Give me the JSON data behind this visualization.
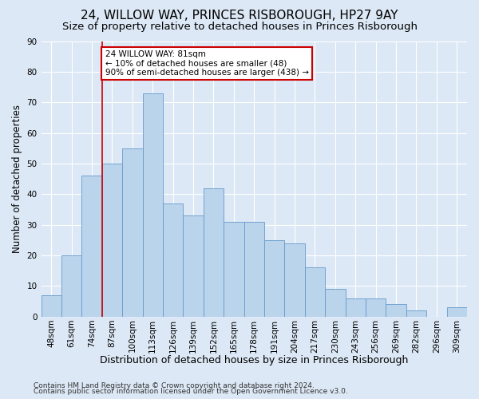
{
  "title1": "24, WILLOW WAY, PRINCES RISBOROUGH, HP27 9AY",
  "title2": "Size of property relative to detached houses in Princes Risborough",
  "xlabel": "Distribution of detached houses by size in Princes Risborough",
  "ylabel": "Number of detached properties",
  "bar_values": [
    7,
    20,
    46,
    50,
    55,
    73,
    37,
    33,
    42,
    31,
    31,
    25,
    24,
    16,
    9,
    6,
    6,
    4,
    2,
    0,
    3
  ],
  "bar_labels": [
    "48sqm",
    "61sqm",
    "74sqm",
    "87sqm",
    "100sqm",
    "113sqm",
    "126sqm",
    "139sqm",
    "152sqm",
    "165sqm",
    "178sqm",
    "191sqm",
    "204sqm",
    "217sqm",
    "230sqm",
    "243sqm",
    "256sqm",
    "269sqm",
    "282sqm",
    "296sqm",
    "309sqm"
  ],
  "bar_color": "#bad4ec",
  "bar_edge_color": "#6699cc",
  "vline_x": 2.5,
  "vline_color": "#cc0000",
  "annotation_line1": "24 WILLOW WAY: 81sqm",
  "annotation_line2": "← 10% of detached houses are smaller (48)",
  "annotation_line3": "90% of semi-detached houses are larger (438) →",
  "annotation_box_color": "#ffffff",
  "annotation_box_edge": "#cc0000",
  "ylim": [
    0,
    90
  ],
  "yticks": [
    0,
    10,
    20,
    30,
    40,
    50,
    60,
    70,
    80,
    90
  ],
  "bg_color": "#dce8f5",
  "grid_color": "#ffffff",
  "footer1": "Contains HM Land Registry data © Crown copyright and database right 2024.",
  "footer2": "Contains public sector information licensed under the Open Government Licence v3.0.",
  "title1_fontsize": 11,
  "title2_fontsize": 9.5,
  "ylabel_fontsize": 8.5,
  "xlabel_fontsize": 9,
  "tick_fontsize": 7.5,
  "annot_fontsize": 7.5,
  "footer_fontsize": 6.5
}
